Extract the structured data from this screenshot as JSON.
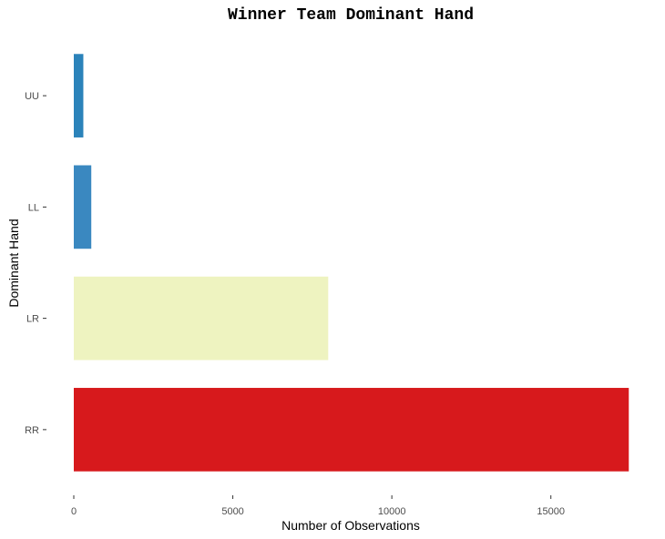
{
  "chart_data": {
    "type": "bar",
    "orientation": "horizontal",
    "title": "Winner Team Dominant Hand",
    "xlabel": "Number of Observations",
    "ylabel": "Dominant Hand",
    "categories": [
      "UU",
      "LL",
      "LR",
      "RR"
    ],
    "values": [
      300,
      550,
      8000,
      17450
    ],
    "colors": [
      "#2b83ba",
      "#3a88c0",
      "#eef3c0",
      "#d7191c"
    ],
    "xlim": [
      0,
      17500
    ],
    "xticks": [
      0,
      5000,
      10000,
      15000
    ],
    "xtick_labels": [
      "0",
      "5000",
      "10000",
      "15000"
    ],
    "grid": false,
    "legend": "none"
  }
}
